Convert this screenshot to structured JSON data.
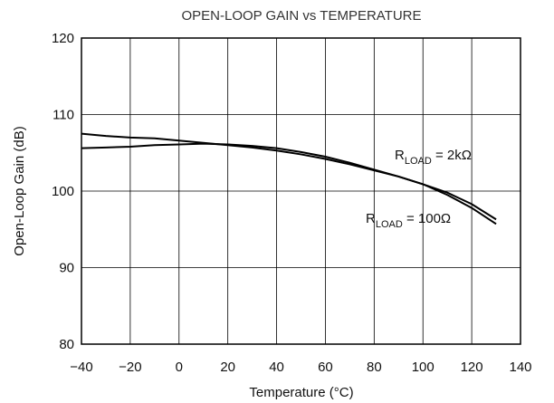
{
  "chart_data": {
    "type": "line",
    "title": "OPEN-LOOP GAIN vs TEMPERATURE",
    "xlabel": "Temperature (°C)",
    "ylabel": "Open-Loop Gain (dB)",
    "x": [
      -40,
      -30,
      -20,
      -10,
      0,
      10,
      20,
      30,
      40,
      50,
      60,
      70,
      80,
      90,
      100,
      110,
      120,
      130
    ],
    "series": [
      {
        "label_parts": [
          "R",
          "LOAD",
          " = 2kΩ"
        ],
        "color": "#000000",
        "values": [
          107.5,
          107.2,
          107.0,
          106.9,
          106.6,
          106.3,
          106.0,
          105.7,
          105.3,
          104.8,
          104.2,
          103.5,
          102.7,
          101.9,
          100.9,
          99.8,
          98.3,
          96.3
        ]
      },
      {
        "label_parts": [
          "R",
          "LOAD",
          " = 100Ω"
        ],
        "color": "#000000",
        "values": [
          105.6,
          105.7,
          105.8,
          106.0,
          106.1,
          106.2,
          106.1,
          105.9,
          105.6,
          105.1,
          104.5,
          103.7,
          102.8,
          101.9,
          100.9,
          99.5,
          97.8,
          95.7
        ]
      }
    ],
    "xlim": [
      -40,
      140
    ],
    "xticks": [
      {
        "value": -40,
        "label": "−40"
      },
      {
        "value": -20,
        "label": "−20"
      },
      0,
      20,
      40,
      60,
      80,
      100,
      120,
      140
    ],
    "ylim": [
      80,
      120
    ],
    "yticks": [
      80,
      90,
      100,
      110,
      120
    ],
    "grid": true
  }
}
